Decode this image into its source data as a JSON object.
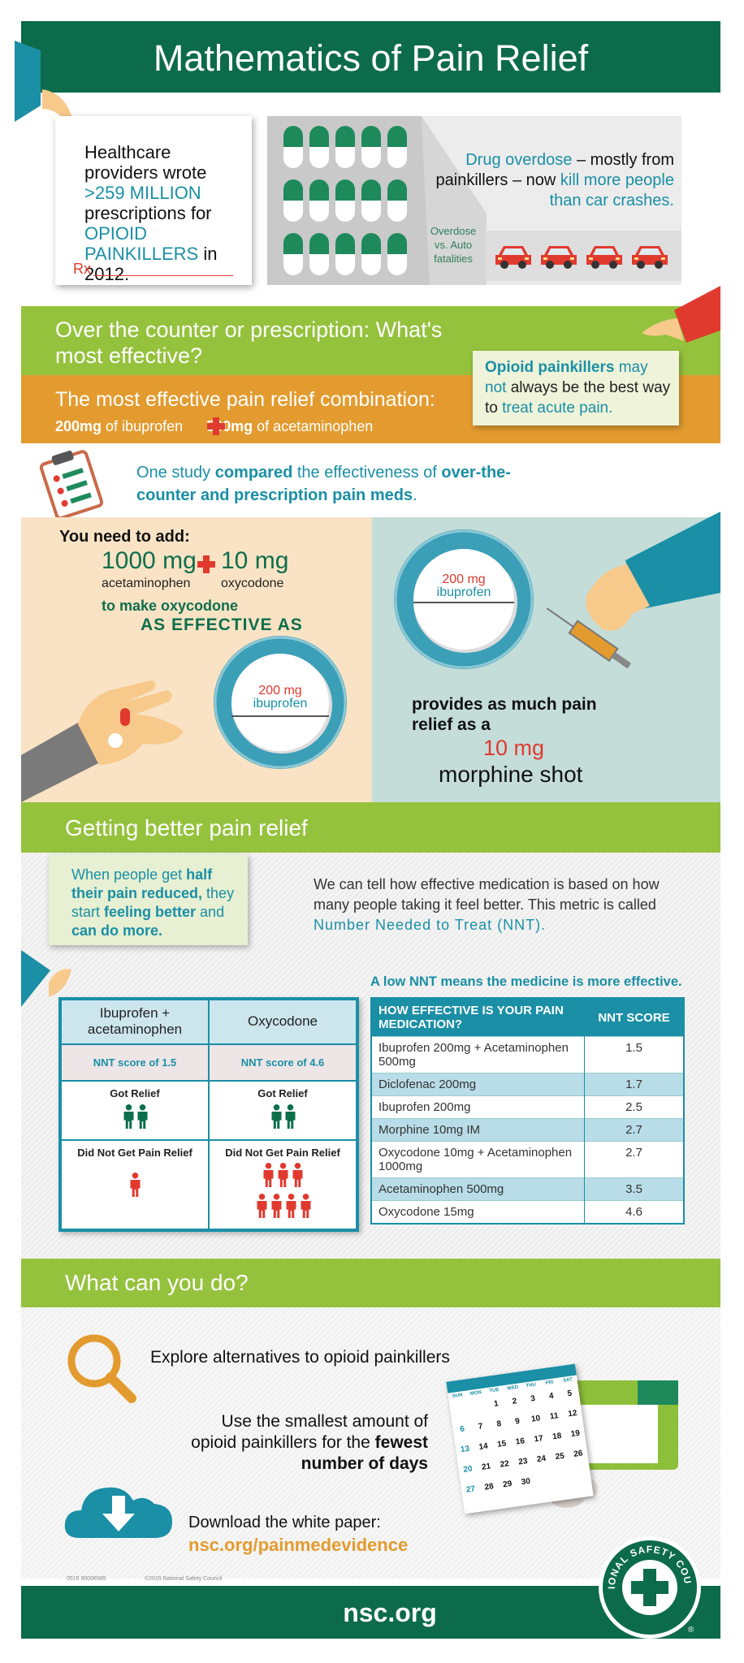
{
  "header": {
    "title": "Mathematics of Pain Relief"
  },
  "intro": {
    "parts": [
      "Healthcare providers wrote ",
      ">259 MILLION",
      " prescriptions for ",
      "OPIOID PAINKILLERS",
      " in 2012."
    ],
    "rx": "Rx"
  },
  "overdose": {
    "parts": [
      "Drug overdose",
      " – mostly from painkillers – now ",
      "kill more people than car crashes."
    ],
    "label": "Overdose vs. Auto fatalities"
  },
  "question": {
    "title": "Over the counter or prescription: What's most effective?",
    "combo_title": "The most effective pain relief combination:",
    "combo": [
      "200mg",
      " of ibuprofen ",
      "500mg",
      " of acetaminophen"
    ],
    "callout": [
      "Opioid painkillers",
      " may ",
      "not",
      " always be the best way to ",
      "treat acute pain."
    ]
  },
  "study": [
    "One study ",
    "compared",
    " the effectiveness of ",
    "over-the-counter and prescription pain meds",
    "."
  ],
  "comparison": {
    "need": "You need to add:",
    "dose1": "1000 mg",
    "drug1": "acetaminophen",
    "dose2": "10 mg",
    "drug2": "oxycodone",
    "line1": "to make oxycodone",
    "line2": "AS EFFECTIVE AS",
    "pill_dose": "200 mg",
    "pill_drug": "ibuprofen",
    "provides": "provides as much pain relief as a",
    "morphine_dose": "10 mg",
    "morphine": "morphine shot"
  },
  "better": {
    "title": "Getting better pain relief",
    "callout": [
      "When people get ",
      "half their pain reduced,",
      " they start ",
      "feeling better",
      " and ",
      "can do more."
    ],
    "text": [
      "We can tell how effective medication is based on how many people taking it feel better. This metric is called ",
      "Number Needed to Treat (NNT)."
    ],
    "note": "A low NNT means the medicine is more effective."
  },
  "pictogram_table": {
    "columns": [
      "Ibuprofen + acetaminophen",
      "Oxycodone"
    ],
    "scores": [
      "NNT score of 1.5",
      "NNT score of 4.6"
    ],
    "got_relief": "Got Relief",
    "no_relief": "Did Not Get Pain Relief"
  },
  "nnt_table": {
    "header": [
      "HOW EFFECTIVE IS YOUR PAIN MEDICATION?",
      "NNT SCORE"
    ],
    "rows": [
      [
        "Ibuprofen 200mg + Acetaminophen 500mg",
        1.5
      ],
      [
        "Diclofenac 200mg",
        1.7
      ],
      [
        "Ibuprofen 200mg",
        2.5
      ],
      [
        "Morphine 10mg IM",
        2.7
      ],
      [
        "Oxycodone 10mg + Acetaminophen 1000mg",
        2.7
      ],
      [
        "Acetaminophen 500mg",
        3.5
      ],
      [
        "Oxycodone 15mg",
        4.6
      ]
    ]
  },
  "actions": {
    "title": "What can you do?",
    "item1": "Explore alternatives to opioid painkillers",
    "item2": [
      "Use the smallest amount of opioid painkillers for the ",
      "fewest number of days"
    ],
    "download": "Download the white paper:",
    "link": "nsc.org/painmedevidence"
  },
  "calendar": {
    "weekdays": [
      "SUN",
      "MON",
      "TUE",
      "WED",
      "THU",
      "FRI",
      "SAT"
    ],
    "weeks": [
      [
        null,
        null,
        1,
        2,
        3,
        4,
        5
      ],
      [
        6,
        7,
        8,
        9,
        10,
        11,
        12
      ],
      [
        13,
        14,
        15,
        16,
        17,
        18,
        19
      ],
      [
        20,
        21,
        22,
        23,
        24,
        25,
        26
      ],
      [
        27,
        28,
        29,
        30,
        null,
        null,
        null
      ]
    ]
  },
  "footer": {
    "code": "0515 90006585",
    "copyright": "©2015 National Safety Council",
    "site": "nsc.org",
    "badge": "NATIONAL SAFETY COUNCIL",
    "mark": "®"
  }
}
